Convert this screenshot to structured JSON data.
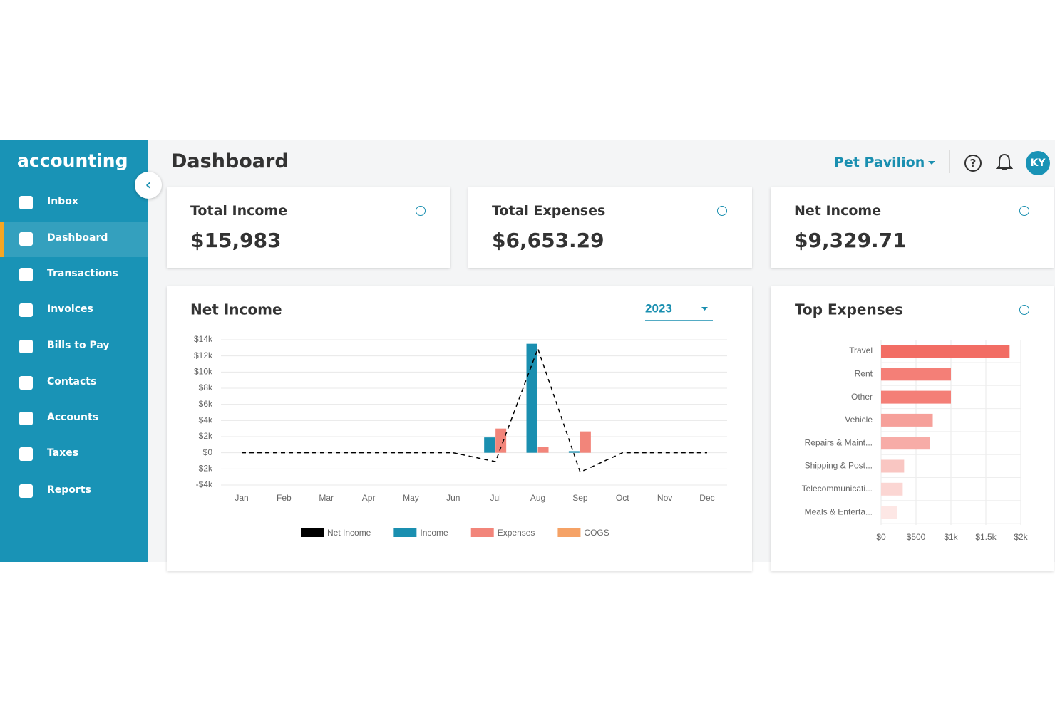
{
  "sidebar": {
    "logo": "accounting",
    "menu": [
      "Inbox",
      "Dashboard",
      "Transactions",
      "Invoices",
      "Bills to Pay",
      "Contacts",
      "Accounts",
      "Taxes",
      "Reports"
    ]
  },
  "header": {
    "title": "Dashboard",
    "company": "Pet Pavilion",
    "avatar": "KY"
  },
  "cards": [
    {
      "label": "Total Income",
      "value": "$15,983"
    },
    {
      "label": "Total Expenses",
      "value": "$6,653.29"
    },
    {
      "label": "Net Income",
      "value": "$9,329.71"
    }
  ],
  "chart_data": [
    {
      "type": "bar",
      "title": "Net Income",
      "year": "2023",
      "categories": [
        "Jan",
        "Feb",
        "Mar",
        "Apr",
        "May",
        "Jun",
        "Jul",
        "Aug",
        "Sep",
        "Oct",
        "Nov",
        "Dec"
      ],
      "series": [
        {
          "name": "Net Income",
          "type": "line",
          "color": "#000000",
          "values": [
            0,
            0,
            0,
            0,
            0,
            0,
            -1100,
            12900,
            -2400,
            0,
            0,
            0
          ]
        },
        {
          "name": "Income",
          "color": "#1a8fb0",
          "values": [
            0,
            0,
            0,
            0,
            0,
            0,
            1900,
            13500,
            200,
            0,
            0,
            0
          ]
        },
        {
          "name": "Expenses",
          "color": "#f2857a",
          "values": [
            0,
            0,
            0,
            0,
            0,
            0,
            3000,
            750,
            2650,
            0,
            0,
            0
          ]
        },
        {
          "name": "COGS",
          "color": "#f5a266",
          "values": [
            0,
            0,
            0,
            0,
            0,
            0,
            0,
            0,
            0,
            0,
            0,
            0
          ]
        }
      ],
      "ylim": [
        -4000,
        14000
      ],
      "yticks": [
        {
          "value": 14000,
          "label": "$14k"
        },
        {
          "value": 12000,
          "label": "$12k"
        },
        {
          "value": 10000,
          "label": "$10k"
        },
        {
          "value": 8000,
          "label": "$8k"
        },
        {
          "value": 6000,
          "label": "$6k"
        },
        {
          "value": 4000,
          "label": "$4k"
        },
        {
          "value": 2000,
          "label": "$2k"
        },
        {
          "value": 0,
          "label": "$0"
        },
        {
          "value": -2000,
          "label": "-$2k"
        },
        {
          "value": -4000,
          "label": "-$4k"
        }
      ],
      "grid": true
    },
    {
      "type": "hbar",
      "title": "Top Expenses",
      "categories": [
        "Travel",
        "Rent",
        "Other",
        "Vehicle",
        "Repairs & Maint...",
        "Shipping & Post...",
        "Telecommunicati...",
        "Meals & Enterta..."
      ],
      "values": [
        1840,
        1000,
        1000,
        740,
        700,
        330,
        310,
        225
      ],
      "colors": [
        "#f26d64",
        "#f47f77",
        "#f47f77",
        "#f6a09a",
        "#f7aca7",
        "#f9c6c2",
        "#fbd6d3",
        "#fde7e5"
      ],
      "xlim": [
        0,
        2000
      ],
      "xticks": [
        {
          "value": 0,
          "label": "$0"
        },
        {
          "value": 500,
          "label": "$500"
        },
        {
          "value": 1000,
          "label": "$1k"
        },
        {
          "value": 1500,
          "label": "$1.5k"
        },
        {
          "value": 2000,
          "label": "$2k"
        }
      ],
      "grid": true
    }
  ]
}
